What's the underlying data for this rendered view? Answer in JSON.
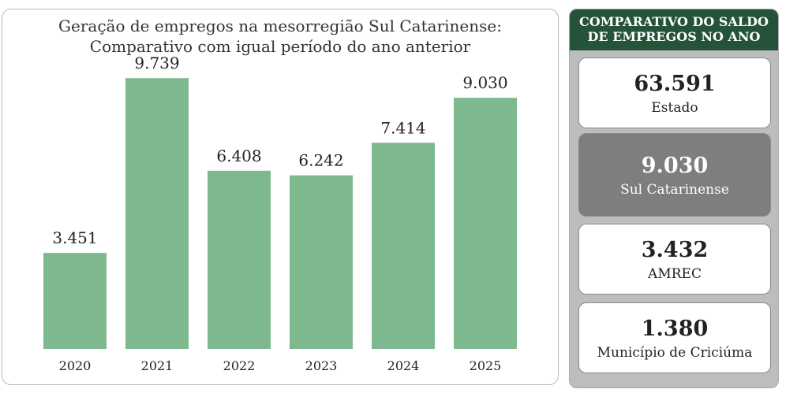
{
  "chart_data": {
    "type": "bar",
    "title": "Geração de empregos na mesorregião Sul Catarinense:",
    "subtitle": "Comparativo com igual período do ano anterior",
    "categories": [
      "2020",
      "2021",
      "2022",
      "2023",
      "2024",
      "2025"
    ],
    "values": [
      3451,
      9739,
      6408,
      6242,
      7414,
      9030
    ],
    "value_labels": [
      "3.451",
      "9.739",
      "6.408",
      "6.242",
      "7.414",
      "9.030"
    ],
    "xlabel": "",
    "ylabel": "",
    "ylim": [
      0,
      10000
    ],
    "grid": false,
    "legend": "none",
    "bar_color": "#7db88f"
  },
  "summary": {
    "title_line1": "COMPARATIVO DO SALDO",
    "title_line2": "DE EMPREGOS NO ANO",
    "header_color": "#24533a",
    "items": [
      {
        "value": "63.591",
        "label": "Estado"
      },
      {
        "value": "9.030",
        "label": "Sul Catarinense"
      },
      {
        "value": "3.432",
        "label": "AMREC"
      },
      {
        "value": "1.380",
        "label": "Município de Criciúma"
      }
    ]
  }
}
